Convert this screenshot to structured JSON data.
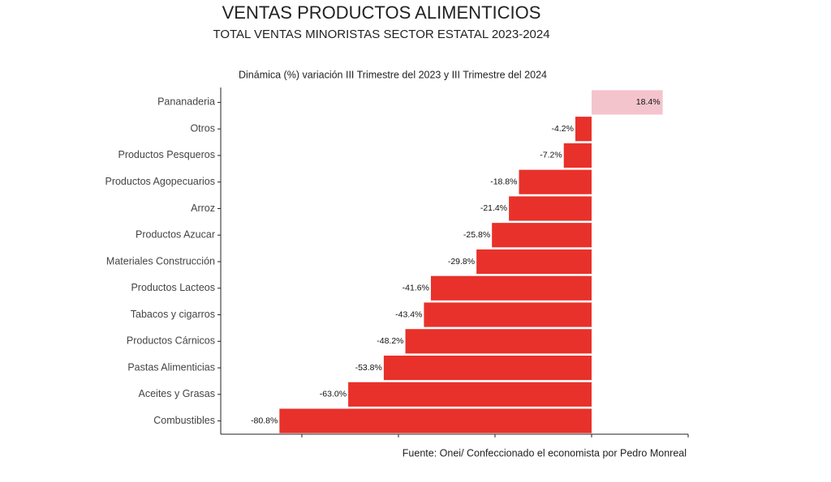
{
  "chart_data": {
    "type": "barh",
    "title": "VENTAS PRODUCTOS ALIMENTICIOS",
    "subtitle": "TOTAL VENTAS MINORISTAS SECTOR ESTATAL 2023-2024",
    "chart_title": "Dinámica (%) variación III Trimestre del 2023 y III Trimestre del 2024",
    "source": "Fuente: Onei/ Confeccionado el economista por Pedro Monreal",
    "categories": [
      "Pananaderia",
      "Otros",
      "Productos Pesqueros",
      "Productos Agopecuarios",
      "Arroz",
      "Productos Azucar",
      "Materiales Construcción",
      "Productos Lacteos",
      "Tabacos y cigarros",
      "Productos Cárnicos",
      "Pastas Alimenticias",
      "Aceites y Grasas",
      "Combustibles"
    ],
    "values": [
      18.4,
      -4.2,
      -7.2,
      -18.8,
      -21.4,
      -25.8,
      -29.8,
      -41.6,
      -43.4,
      -48.2,
      -53.8,
      -63.0,
      -80.8
    ],
    "value_labels": [
      "18.4%",
      "-4.2%",
      "-7.2%",
      "-18.8%",
      "-21.4%",
      "-25.8%",
      "-29.8%",
      "-41.6%",
      "-43.4%",
      "-48.2%",
      "-53.8%",
      "-63.0%",
      "-80.8%"
    ],
    "colors": [
      "#f4c4cd",
      "#e8312a",
      "#e8312a",
      "#e8312a",
      "#e8312a",
      "#e8312a",
      "#e8312a",
      "#e8312a",
      "#e8312a",
      "#e8312a",
      "#e8312a",
      "#e8312a",
      "#e8312a"
    ],
    "xlim": [
      -96,
      25
    ],
    "xticks": [
      -75,
      -50,
      -25,
      0,
      25
    ],
    "grid": false
  }
}
